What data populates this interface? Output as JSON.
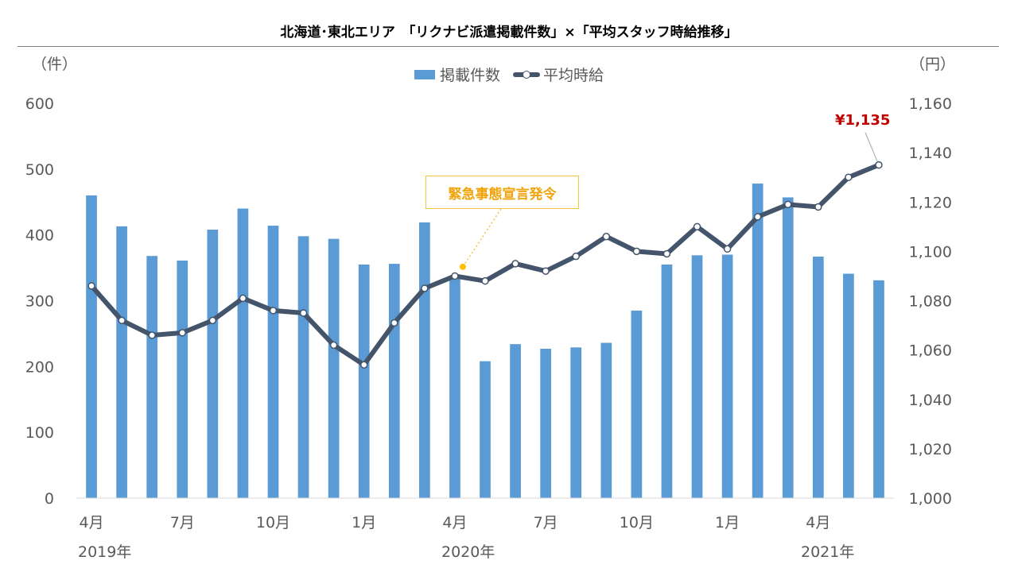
{
  "chart_data": {
    "type": "bar+line",
    "title": "北海道･東北エリア　「リクナビ派遣掲載件数」×「平均スタッフ時給推移」",
    "y_left_unit": "（件）",
    "y_right_unit": "（円）",
    "y_left_lim": [
      0,
      600
    ],
    "y_right_lim": [
      1000,
      1160
    ],
    "y_left_ticks": [
      "0",
      "100",
      "200",
      "300",
      "400",
      "500",
      "600"
    ],
    "y_right_ticks": [
      "1,000",
      "1,020",
      "1,040",
      "1,060",
      "1,080",
      "1,100",
      "1,120",
      "1,140",
      "1,160"
    ],
    "x_tick_labels": [
      {
        "index": 0,
        "label": "4月"
      },
      {
        "index": 3,
        "label": "7月"
      },
      {
        "index": 6,
        "label": "10月"
      },
      {
        "index": 9,
        "label": "1月"
      },
      {
        "index": 12,
        "label": "4月"
      },
      {
        "index": 15,
        "label": "7月"
      },
      {
        "index": 18,
        "label": "10月"
      },
      {
        "index": 21,
        "label": "1月"
      },
      {
        "index": 24,
        "label": "4月"
      }
    ],
    "years": [
      {
        "index": 0,
        "label": "2019年"
      },
      {
        "index": 12,
        "label": "2020年"
      },
      {
        "index": 24,
        "label": "2021年"
      }
    ],
    "series": [
      {
        "name": "掲載件数",
        "type": "bar",
        "axis": "left",
        "color": "#5b9bd5",
        "values": [
          460,
          413,
          368,
          361,
          408,
          440,
          414,
          398,
          394,
          355,
          356,
          419,
          337,
          208,
          234,
          227,
          229,
          236,
          285,
          355,
          369,
          370,
          478,
          457,
          367,
          341,
          331
        ]
      },
      {
        "name": "平均時給",
        "type": "line",
        "axis": "right",
        "color": "#44546a",
        "values": [
          1086,
          1072,
          1066,
          1067,
          1072,
          1081,
          1076,
          1075,
          1062,
          1054,
          1071,
          1085,
          1090,
          1088,
          1095,
          1092,
          1098,
          1106,
          1100,
          1099,
          1110,
          1101,
          1114,
          1119,
          1118,
          1130,
          1135
        ]
      }
    ],
    "annotations": [
      {
        "text": "緊急事態宣言発令",
        "color": "#f0a30a",
        "points_to_index": 12
      },
      {
        "text": "¥1,135",
        "color": "#c00000",
        "points_to_index": 26
      }
    ],
    "legend": "top-center",
    "grid": false
  },
  "legend_labels": {
    "bar": "掲載件数",
    "line": "平均時給"
  }
}
